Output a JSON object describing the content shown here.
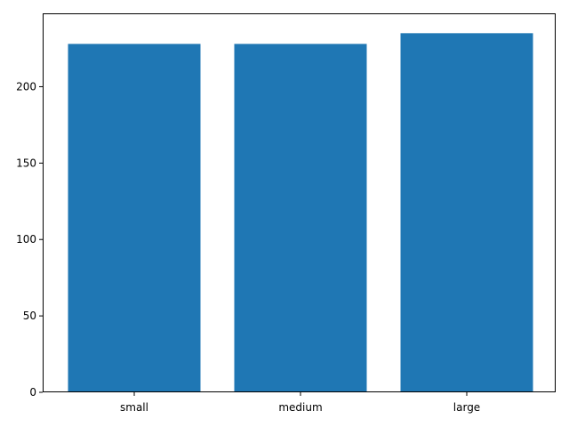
{
  "chart_data": {
    "type": "bar",
    "categories": [
      "small",
      "medium",
      "large"
    ],
    "values": [
      228,
      228,
      235
    ],
    "title": "",
    "xlabel": "",
    "ylabel": "",
    "ylim": [
      0,
      248
    ],
    "yticks": [
      0,
      50,
      100,
      150,
      200
    ],
    "grid": false,
    "bar_color": "#1f77b4"
  }
}
